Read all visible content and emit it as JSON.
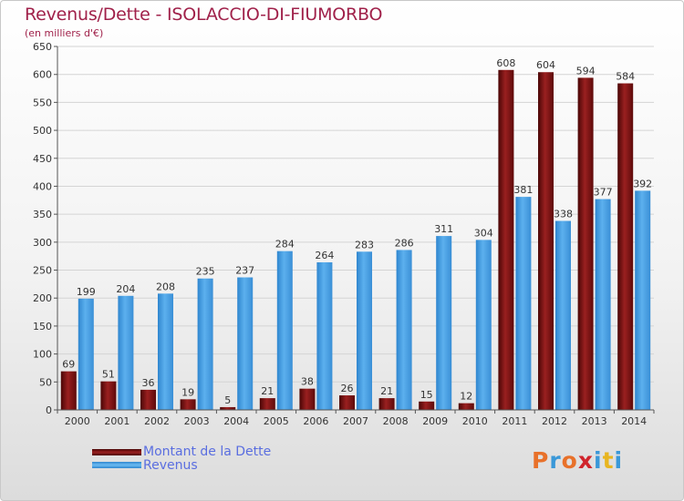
{
  "header": {
    "title": "Revenus/Dette - ISOLACCIO-DI-FIUMORBO",
    "subtitle": "(en milliers d'€)"
  },
  "legend": {
    "items": [
      {
        "label": "Montant de la Dette",
        "color": "#7a1212"
      },
      {
        "label": "Revenus",
        "color": "#4fa3e3"
      }
    ]
  },
  "logo": {
    "text": "Proxiti",
    "colors": [
      "#e8712a",
      "#3a98d8",
      "#e8712a",
      "#d0242c",
      "#3a98d8",
      "#e8b520",
      "#3a98d8"
    ]
  },
  "chart_data": {
    "type": "bar",
    "title": "Revenus/Dette - ISOLACCIO-DI-FIUMORBO",
    "subtitle": "(en milliers d'€)",
    "categories": [
      "2000",
      "2001",
      "2002",
      "2003",
      "2004",
      "2005",
      "2006",
      "2007",
      "2008",
      "2009",
      "2010",
      "2011",
      "2012",
      "2013",
      "2014"
    ],
    "series": [
      {
        "name": "Montant de la Dette",
        "color": "#7a1212",
        "values": [
          69,
          51,
          36,
          19,
          5,
          21,
          38,
          26,
          21,
          15,
          12,
          608,
          604,
          594,
          584
        ]
      },
      {
        "name": "Revenus",
        "color": "#4fa3e3",
        "values": [
          199,
          204,
          208,
          235,
          237,
          284,
          264,
          283,
          286,
          311,
          304,
          381,
          338,
          377,
          392
        ]
      }
    ],
    "ylim": [
      0,
      650
    ],
    "yticks": [
      0,
      50,
      100,
      150,
      200,
      250,
      300,
      350,
      400,
      450,
      500,
      550,
      600,
      650
    ],
    "grid": true,
    "legend_position": "bottom-left"
  }
}
